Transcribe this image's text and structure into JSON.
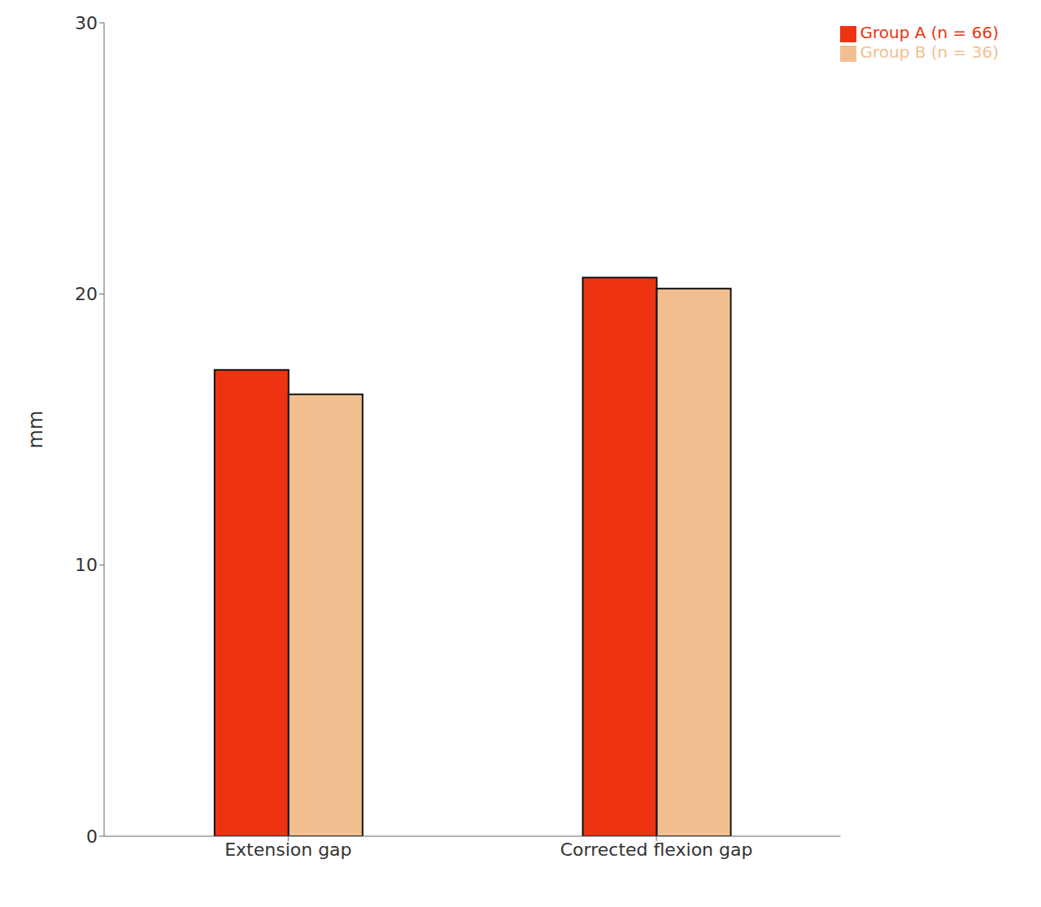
{
  "chart_data": {
    "type": "bar",
    "categories": [
      "Extension gap",
      "Corrected flexion gap"
    ],
    "series": [
      {
        "name": "Group A (n = 66)",
        "color": "#EE3311",
        "values": [
          17.2,
          20.6
        ]
      },
      {
        "name": "Group B (n = 36)",
        "color": "#F2C090",
        "values": [
          16.3,
          20.2
        ]
      }
    ],
    "ylabel": "mm",
    "ylim": [
      0,
      30
    ],
    "yticks": [
      0,
      10,
      20,
      30
    ],
    "grid": false,
    "legend": "upper right"
  }
}
